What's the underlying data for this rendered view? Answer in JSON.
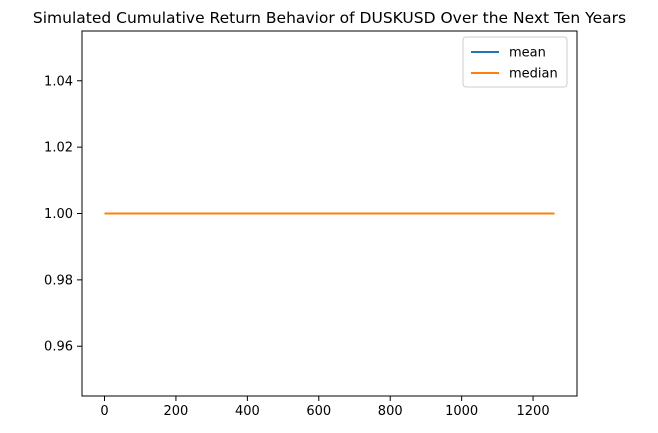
{
  "chart_data": {
    "type": "line",
    "title": "Simulated Cumulative Return Behavior of DUSKUSD Over the Next Ten Years",
    "xlabel": "",
    "ylabel": "",
    "xlim": [
      -63,
      1323
    ],
    "ylim": [
      0.945,
      1.055
    ],
    "xticks": [
      0,
      200,
      400,
      600,
      800,
      1000,
      1200
    ],
    "xtick_labels": [
      "0",
      "200",
      "400",
      "600",
      "800",
      "1000",
      "1200"
    ],
    "yticks": [
      0.96,
      0.98,
      1.0,
      1.02,
      1.04
    ],
    "ytick_labels": [
      "0.96",
      "0.98",
      "1.00",
      "1.02",
      "1.04"
    ],
    "grid": false,
    "legend_position": "upper-right",
    "series": [
      {
        "name": "mean",
        "color": "#1f77b4",
        "x": [
          0,
          1260
        ],
        "values": [
          1.0,
          1.0
        ]
      },
      {
        "name": "median",
        "color": "#ff7f0e",
        "x": [
          0,
          1260
        ],
        "values": [
          1.0,
          1.0
        ]
      }
    ]
  }
}
